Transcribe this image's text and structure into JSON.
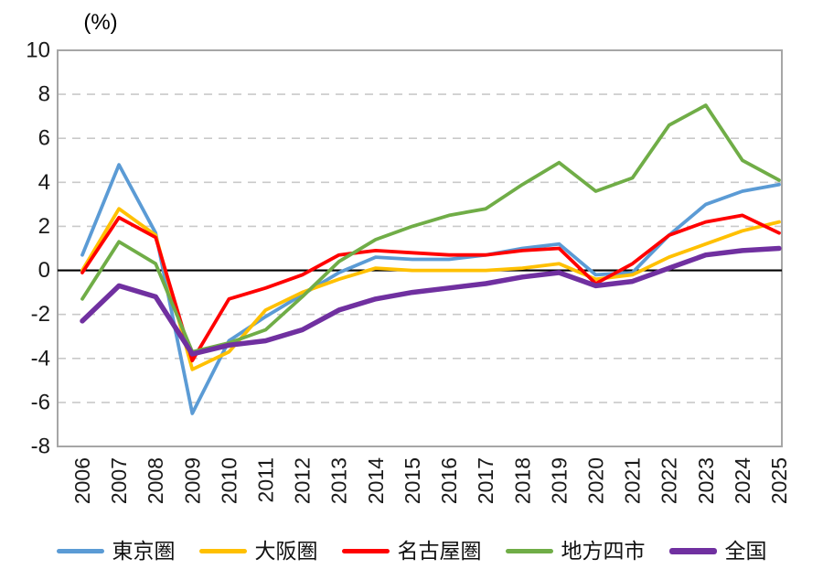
{
  "chart_data": {
    "type": "line",
    "title": "(%)",
    "x": [
      2006,
      2007,
      2008,
      2009,
      2010,
      2011,
      2012,
      2013,
      2014,
      2015,
      2016,
      2017,
      2018,
      2019,
      2020,
      2021,
      2022,
      2023,
      2024,
      2025
    ],
    "series": [
      {
        "id": "tokyo-area",
        "name": "東京圏",
        "color": "#5B9BD5",
        "width": 3.8,
        "values": [
          0.7,
          4.8,
          1.7,
          -6.5,
          -3.2,
          -2.1,
          -1.1,
          -0.1,
          0.6,
          0.5,
          0.5,
          0.7,
          1.0,
          1.2,
          -0.2,
          -0.1,
          1.6,
          3.0,
          3.6,
          3.9
        ]
      },
      {
        "id": "osaka-area",
        "name": "大阪圏",
        "color": "#FFC000",
        "width": 3.8,
        "values": [
          0.0,
          2.8,
          1.6,
          -4.5,
          -3.7,
          -1.8,
          -1.0,
          -0.4,
          0.1,
          0.0,
          0.0,
          0.0,
          0.1,
          0.3,
          -0.4,
          -0.2,
          0.6,
          1.2,
          1.8,
          2.2
        ]
      },
      {
        "id": "nagoya-area",
        "name": "名古屋圏",
        "color": "#FF0000",
        "width": 3.8,
        "values": [
          -0.1,
          2.4,
          1.5,
          -4.1,
          -1.3,
          -0.8,
          -0.2,
          0.7,
          0.9,
          0.8,
          0.7,
          0.7,
          0.9,
          1.0,
          -0.6,
          0.3,
          1.6,
          2.2,
          2.5,
          1.7
        ]
      },
      {
        "id": "regional-four-cities",
        "name": "地方四市",
        "color": "#70AD47",
        "width": 3.8,
        "values": [
          -1.3,
          1.3,
          0.3,
          -3.7,
          -3.3,
          -2.7,
          -1.2,
          0.4,
          1.4,
          2.0,
          2.5,
          2.8,
          3.9,
          4.9,
          3.6,
          4.2,
          6.6,
          7.5,
          5.0,
          4.1
        ]
      },
      {
        "id": "nationwide",
        "name": "全国",
        "color": "#7030A0",
        "width": 5.5,
        "values": [
          -2.3,
          -0.7,
          -1.2,
          -3.8,
          -3.4,
          -3.2,
          -2.7,
          -1.8,
          -1.3,
          -1.0,
          -0.8,
          -0.6,
          -0.3,
          -0.1,
          -0.7,
          -0.5,
          0.1,
          0.7,
          0.9,
          1.0
        ]
      }
    ],
    "ylim": [
      -8,
      10
    ],
    "yticks": [
      10,
      8,
      6,
      4,
      2,
      0,
      -2,
      -4,
      -6,
      -8
    ],
    "xtick_labels": [
      "2006",
      "2007",
      "2008",
      "2009",
      "2010",
      "2011",
      "2012",
      "2013",
      "2014",
      "2015",
      "2016",
      "2017",
      "2018",
      "2019",
      "2020",
      "2021",
      "2022",
      "2023",
      "2024",
      "2025"
    ],
    "grid": "horizontal-dashed",
    "zero_line": true,
    "legend_position": "bottom",
    "style_colors": {
      "gridline": "#C9C9C9",
      "axis_border": "#A6A6A6",
      "zero_line": "#000000",
      "tick_label": "#1a1a1a"
    }
  }
}
